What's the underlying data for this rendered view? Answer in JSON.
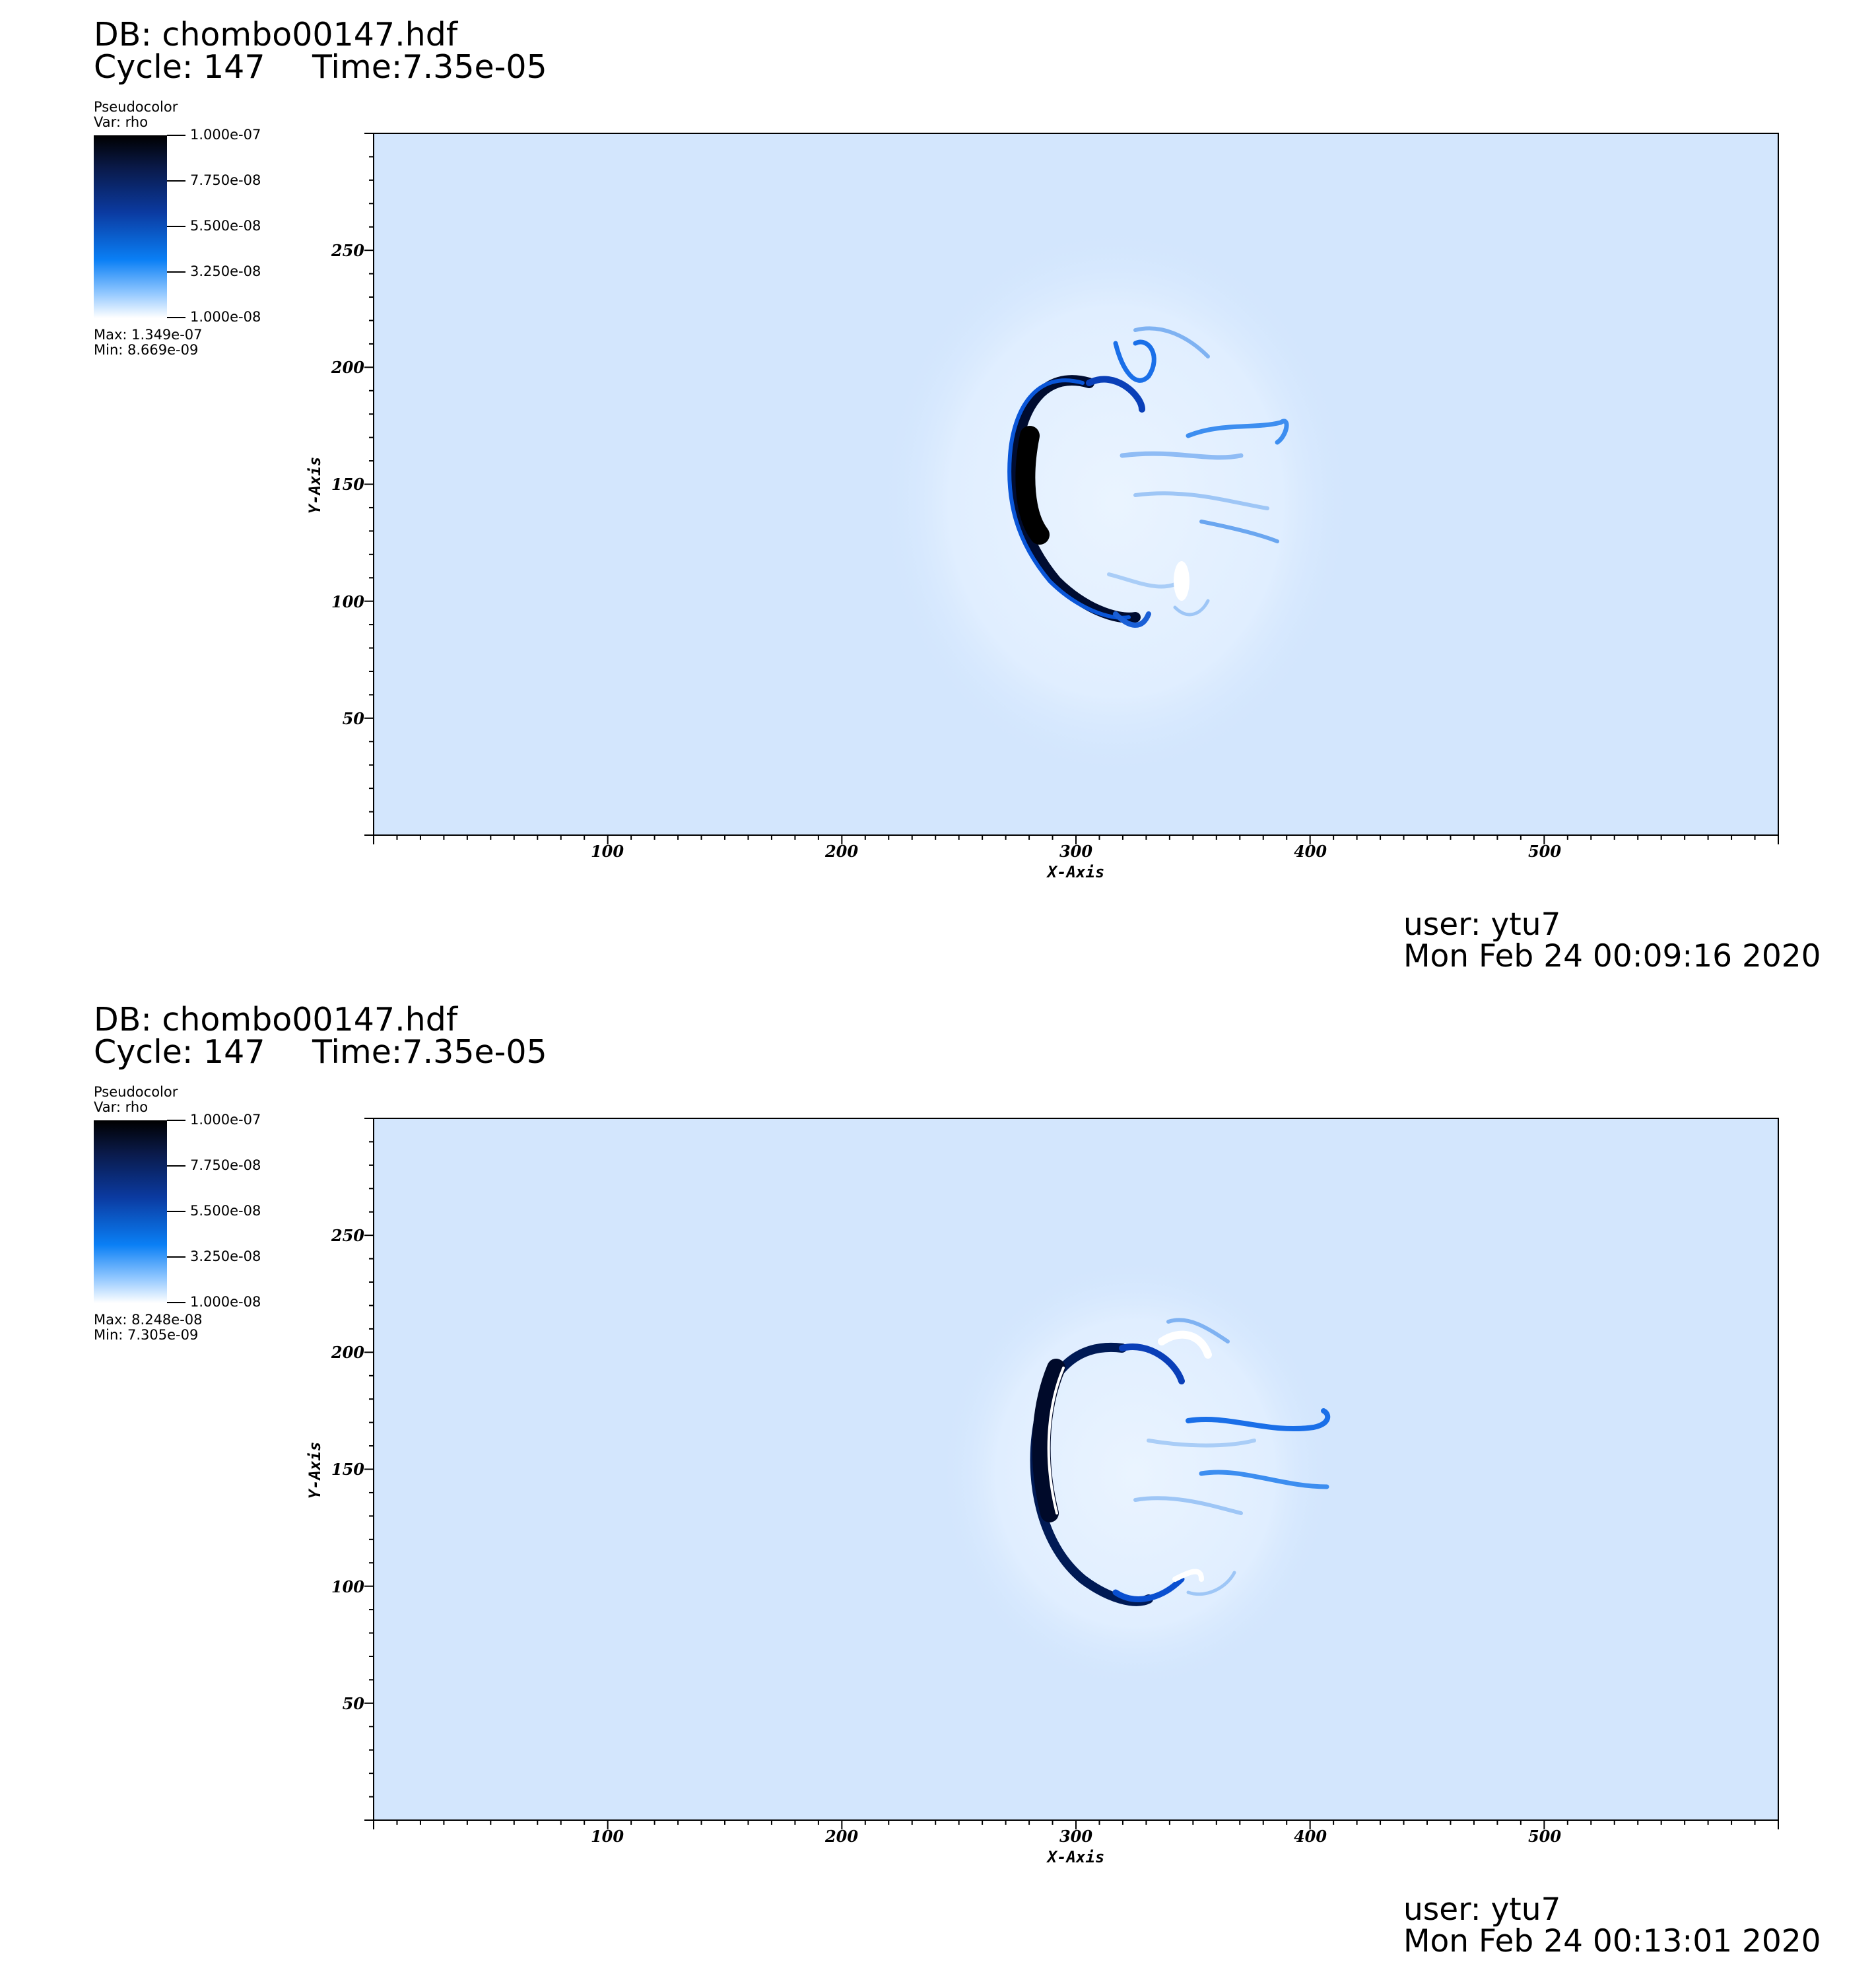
{
  "chart_data": [
    {
      "type": "heatmap",
      "database": "DB: chombo00147.hdf",
      "cycle": "Cycle: 147",
      "time": "Time:7.35e-05",
      "legend": {
        "plot_type": "Pseudocolor",
        "variable": "Var: rho",
        "ticks": [
          "1.000e-07",
          "7.750e-08",
          "5.500e-08",
          "3.250e-08",
          "1.000e-08"
        ],
        "max": "Max:  1.349e-07",
        "min": "Min:  8.669e-09",
        "colors": [
          "#000000",
          "#0b3aa0",
          "#0a7ff5",
          "#ffffff"
        ]
      },
      "xlabel": "X-Axis",
      "ylabel": "Y-Axis",
      "xlim": [
        0,
        600
      ],
      "ylim": [
        0,
        300
      ],
      "xticks": [
        "100",
        "200",
        "300",
        "400",
        "500"
      ],
      "yticks": [
        "50",
        "100",
        "150",
        "200",
        "250"
      ],
      "background_color": "#d3e6fd",
      "user": "user: ytu7",
      "date": "Mon Feb 24 00:09:16 2020"
    },
    {
      "type": "heatmap",
      "database": "DB: chombo00147.hdf",
      "cycle": "Cycle: 147",
      "time": "Time:7.35e-05",
      "legend": {
        "plot_type": "Pseudocolor",
        "variable": "Var: rho",
        "ticks": [
          "1.000e-07",
          "7.750e-08",
          "5.500e-08",
          "3.250e-08",
          "1.000e-08"
        ],
        "max": "Max:  8.248e-08",
        "min": "Min:  7.305e-09",
        "colors": [
          "#000000",
          "#0b3aa0",
          "#0a7ff5",
          "#ffffff"
        ]
      },
      "xlabel": "X-Axis",
      "ylabel": "Y-Axis",
      "xlim": [
        0,
        600
      ],
      "ylim": [
        0,
        300
      ],
      "xticks": [
        "100",
        "200",
        "300",
        "400",
        "500"
      ],
      "yticks": [
        "50",
        "100",
        "150",
        "200",
        "250"
      ],
      "background_color": "#d3e6fd",
      "user": "user: ytu7",
      "date": "Mon Feb 24 00:13:01 2020"
    }
  ]
}
